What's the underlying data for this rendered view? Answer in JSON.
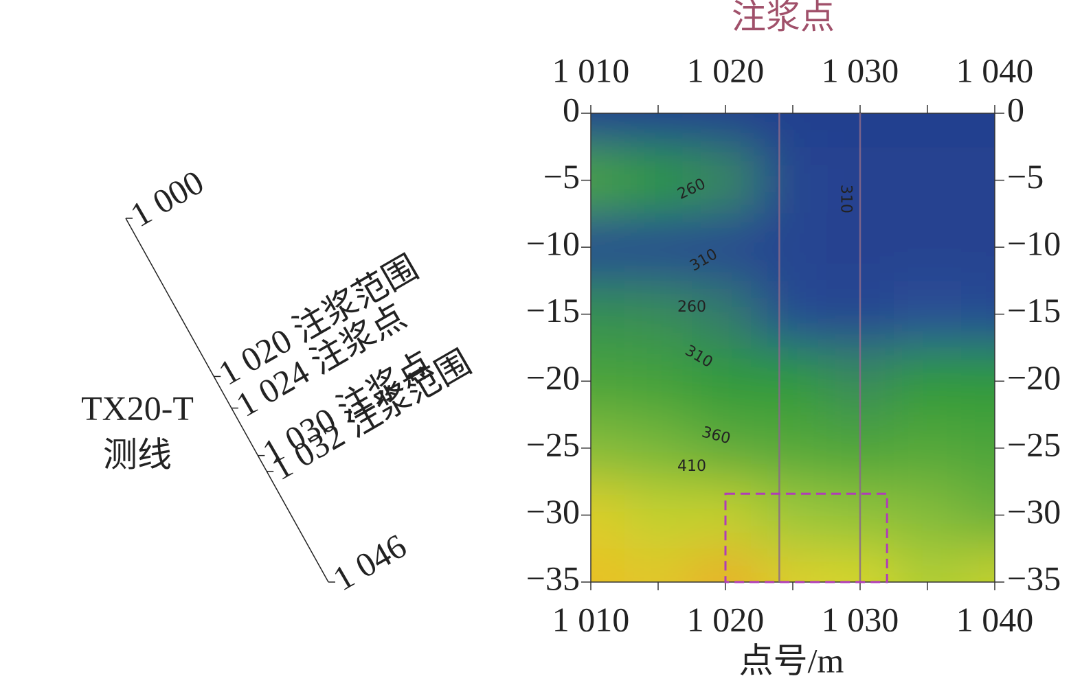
{
  "chart_data": {
    "type": "contour",
    "title": "注浆点",
    "xlabel": "点号/m",
    "xlim": [
      1010,
      1040
    ],
    "ylim": [
      -35,
      0
    ],
    "xticks": [
      {
        "value": 1010,
        "label": "1 010"
      },
      {
        "value": 1020,
        "label": "1 020"
      },
      {
        "value": 1030,
        "label": "1 030"
      },
      {
        "value": 1040,
        "label": "1 040"
      }
    ],
    "xminorticks": [
      1015,
      1025,
      1035
    ],
    "yticks": [
      {
        "value": -35,
        "label": "−35"
      },
      {
        "value": -30,
        "label": "−30"
      },
      {
        "value": -25,
        "label": "−25"
      },
      {
        "value": -20,
        "label": "−20"
      },
      {
        "value": -15,
        "label": "−15"
      },
      {
        "value": -10,
        "label": "−10"
      },
      {
        "value": -5,
        "label": "−5"
      },
      0
    ],
    "x": [
      1010,
      1015,
      1020,
      1025,
      1030,
      1035,
      1040
    ],
    "y": [
      0,
      -5,
      -10,
      -15,
      -20,
      -25,
      -30,
      -35
    ],
    "z": [
      [
        200,
        200,
        200,
        200,
        200,
        200,
        200
      ],
      [
        330,
        300,
        270,
        220,
        210,
        210,
        210
      ],
      [
        220,
        220,
        220,
        215,
        210,
        210,
        210
      ],
      [
        280,
        275,
        265,
        230,
        220,
        250,
        230
      ],
      [
        330,
        320,
        300,
        300,
        270,
        300,
        300
      ],
      [
        380,
        370,
        350,
        340,
        330,
        340,
        330
      ],
      [
        440,
        420,
        420,
        400,
        390,
        380,
        360
      ],
      [
        460,
        450,
        470,
        440,
        430,
        410,
        420
      ]
    ],
    "colorscale": [
      [
        200,
        "#243f8f"
      ],
      [
        250,
        "#2b4f96"
      ],
      [
        270,
        "#3a8a5c"
      ],
      [
        300,
        "#2f9a3a"
      ],
      [
        350,
        "#5fab3a"
      ],
      [
        400,
        "#9cc83a"
      ],
      [
        430,
        "#d6d62a"
      ],
      [
        460,
        "#e8c028"
      ],
      [
        490,
        "#e8902e"
      ]
    ],
    "contour_labels": [
      {
        "text": "260",
        "x": 1017.5,
        "y": -5.7,
        "angle": -25
      },
      {
        "text": "310",
        "x": 1028.9,
        "y": -6.4,
        "angle": 90
      },
      {
        "text": "310",
        "x": 1018.4,
        "y": -11.0,
        "angle": -30
      },
      {
        "text": "260",
        "x": 1017.5,
        "y": -14.5,
        "angle": 0
      },
      {
        "text": "310",
        "x": 1018.0,
        "y": -18.2,
        "angle": 30
      },
      {
        "text": "360",
        "x": 1019.3,
        "y": -24.1,
        "angle": 15
      },
      {
        "text": "410",
        "x": 1017.5,
        "y": -26.4,
        "angle": 0
      }
    ],
    "grouting_points": [
      1024,
      1030
    ],
    "grouting_range": {
      "x": [
        1020,
        1032
      ],
      "y": [
        -28.4,
        -35
      ]
    },
    "survey_line": {
      "name": "TX20-T",
      "label": "测线",
      "stations": [
        {
          "value": 1000,
          "label": "1 000"
        },
        {
          "value": 1020,
          "label": "1 020 注浆范围"
        },
        {
          "value": 1024,
          "label": "1 024 注浆点"
        },
        {
          "value": 1030,
          "label": "1 030 注浆点"
        },
        {
          "value": 1032,
          "label": "1 032 注浆范围"
        },
        {
          "value": 1046,
          "label": "1 046"
        }
      ]
    }
  }
}
